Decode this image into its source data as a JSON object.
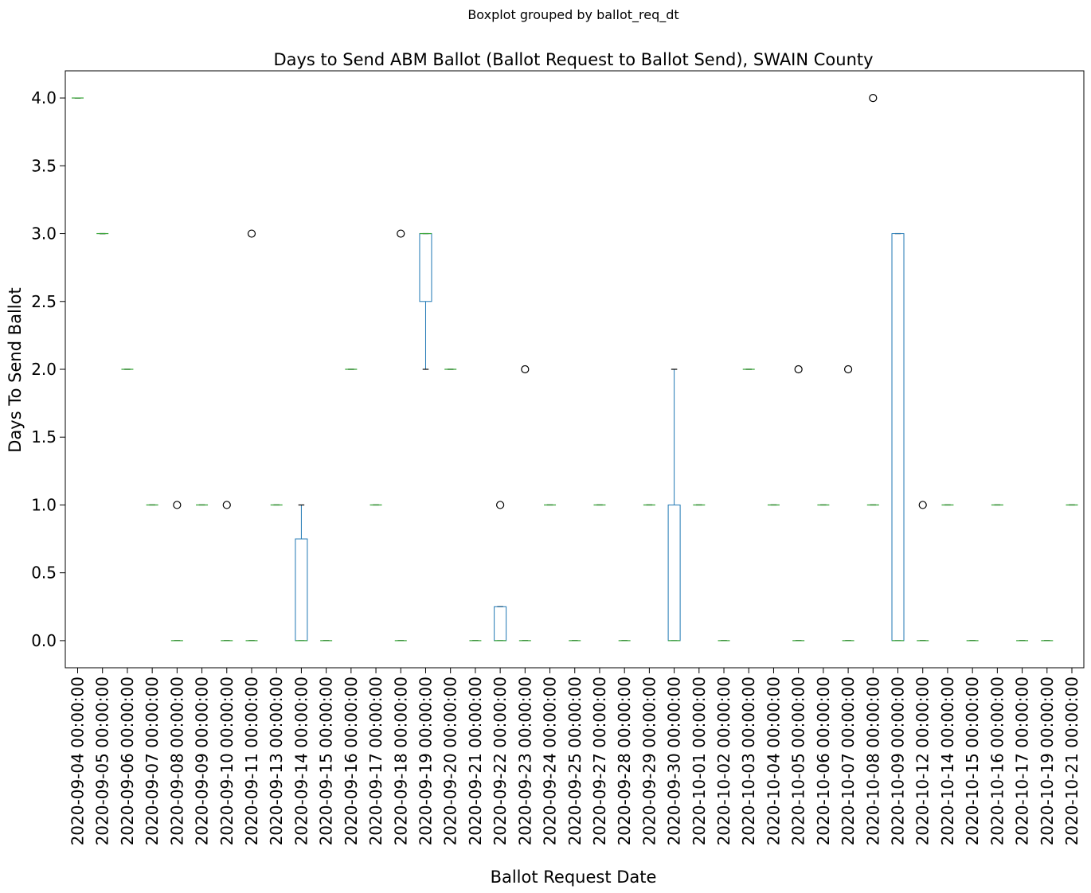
{
  "suptitle": "Boxplot grouped by ballot_req_dt",
  "colors": {
    "box": "#1f77b4",
    "median": "#2ca02c",
    "whisker": "#1f77b4",
    "cap": "#000000",
    "flier": "#000000"
  },
  "chart_data": {
    "type": "boxplot",
    "title": "Days to Send ABM Ballot (Ballot Request to Ballot Send), SWAIN County",
    "xlabel": "Ballot Request Date",
    "ylabel": "Days To Send Ballot",
    "ylim": [
      -0.2,
      4.2
    ],
    "yticks": [
      0.0,
      0.5,
      1.0,
      1.5,
      2.0,
      2.5,
      3.0,
      3.5,
      4.0
    ],
    "ytick_labels": [
      "0.0",
      "0.5",
      "1.0",
      "1.5",
      "2.0",
      "2.5",
      "3.0",
      "3.5",
      "4.0"
    ],
    "grid": false,
    "boxes": [
      {
        "category": "2020-09-04 00:00:00",
        "wlo": 4,
        "q1": 4,
        "med": 4,
        "q3": 4,
        "whi": 4,
        "fliers": []
      },
      {
        "category": "2020-09-05 00:00:00",
        "wlo": 3,
        "q1": 3,
        "med": 3,
        "q3": 3,
        "whi": 3,
        "fliers": []
      },
      {
        "category": "2020-09-06 00:00:00",
        "wlo": 2,
        "q1": 2,
        "med": 2,
        "q3": 2,
        "whi": 2,
        "fliers": []
      },
      {
        "category": "2020-09-07 00:00:00",
        "wlo": 1,
        "q1": 1,
        "med": 1,
        "q3": 1,
        "whi": 1,
        "fliers": []
      },
      {
        "category": "2020-09-08 00:00:00",
        "wlo": 0,
        "q1": 0,
        "med": 0,
        "q3": 0,
        "whi": 0,
        "fliers": [
          1
        ]
      },
      {
        "category": "2020-09-09 00:00:00",
        "wlo": 1,
        "q1": 1,
        "med": 1,
        "q3": 1,
        "whi": 1,
        "fliers": []
      },
      {
        "category": "2020-09-10 00:00:00",
        "wlo": 0,
        "q1": 0,
        "med": 0,
        "q3": 0,
        "whi": 0,
        "fliers": [
          1
        ]
      },
      {
        "category": "2020-09-11 00:00:00",
        "wlo": 0,
        "q1": 0,
        "med": 0,
        "q3": 0,
        "whi": 0,
        "fliers": [
          3
        ]
      },
      {
        "category": "2020-09-13 00:00:00",
        "wlo": 1,
        "q1": 1,
        "med": 1,
        "q3": 1,
        "whi": 1,
        "fliers": []
      },
      {
        "category": "2020-09-14 00:00:00",
        "wlo": 0,
        "q1": 0,
        "med": 0,
        "q3": 0.75,
        "whi": 1,
        "fliers": []
      },
      {
        "category": "2020-09-15 00:00:00",
        "wlo": 0,
        "q1": 0,
        "med": 0,
        "q3": 0,
        "whi": 0,
        "fliers": []
      },
      {
        "category": "2020-09-16 00:00:00",
        "wlo": 2,
        "q1": 2,
        "med": 2,
        "q3": 2,
        "whi": 2,
        "fliers": []
      },
      {
        "category": "2020-09-17 00:00:00",
        "wlo": 1,
        "q1": 1,
        "med": 1,
        "q3": 1,
        "whi": 1,
        "fliers": []
      },
      {
        "category": "2020-09-18 00:00:00",
        "wlo": 0,
        "q1": 0,
        "med": 0,
        "q3": 0,
        "whi": 0,
        "fliers": [
          3
        ]
      },
      {
        "category": "2020-09-19 00:00:00",
        "wlo": 2,
        "q1": 2.5,
        "med": 3,
        "q3": 3,
        "whi": 3,
        "fliers": []
      },
      {
        "category": "2020-09-20 00:00:00",
        "wlo": 2,
        "q1": 2,
        "med": 2,
        "q3": 2,
        "whi": 2,
        "fliers": []
      },
      {
        "category": "2020-09-21 00:00:00",
        "wlo": 0,
        "q1": 0,
        "med": 0,
        "q3": 0,
        "whi": 0,
        "fliers": []
      },
      {
        "category": "2020-09-22 00:00:00",
        "wlo": 0,
        "q1": 0,
        "med": 0,
        "q3": 0.25,
        "whi": 0.25,
        "fliers": [
          1
        ]
      },
      {
        "category": "2020-09-23 00:00:00",
        "wlo": 0,
        "q1": 0,
        "med": 0,
        "q3": 0,
        "whi": 0,
        "fliers": [
          2
        ]
      },
      {
        "category": "2020-09-24 00:00:00",
        "wlo": 1,
        "q1": 1,
        "med": 1,
        "q3": 1,
        "whi": 1,
        "fliers": []
      },
      {
        "category": "2020-09-25 00:00:00",
        "wlo": 0,
        "q1": 0,
        "med": 0,
        "q3": 0,
        "whi": 0,
        "fliers": []
      },
      {
        "category": "2020-09-27 00:00:00",
        "wlo": 1,
        "q1": 1,
        "med": 1,
        "q3": 1,
        "whi": 1,
        "fliers": []
      },
      {
        "category": "2020-09-28 00:00:00",
        "wlo": 0,
        "q1": 0,
        "med": 0,
        "q3": 0,
        "whi": 0,
        "fliers": []
      },
      {
        "category": "2020-09-29 00:00:00",
        "wlo": 1,
        "q1": 1,
        "med": 1,
        "q3": 1,
        "whi": 1,
        "fliers": []
      },
      {
        "category": "2020-09-30 00:00:00",
        "wlo": 0,
        "q1": 0,
        "med": 0,
        "q3": 1,
        "whi": 2,
        "fliers": []
      },
      {
        "category": "2020-10-01 00:00:00",
        "wlo": 1,
        "q1": 1,
        "med": 1,
        "q3": 1,
        "whi": 1,
        "fliers": []
      },
      {
        "category": "2020-10-02 00:00:00",
        "wlo": 0,
        "q1": 0,
        "med": 0,
        "q3": 0,
        "whi": 0,
        "fliers": []
      },
      {
        "category": "2020-10-03 00:00:00",
        "wlo": 2,
        "q1": 2,
        "med": 2,
        "q3": 2,
        "whi": 2,
        "fliers": []
      },
      {
        "category": "2020-10-04 00:00:00",
        "wlo": 1,
        "q1": 1,
        "med": 1,
        "q3": 1,
        "whi": 1,
        "fliers": []
      },
      {
        "category": "2020-10-05 00:00:00",
        "wlo": 0,
        "q1": 0,
        "med": 0,
        "q3": 0,
        "whi": 0,
        "fliers": [
          2
        ]
      },
      {
        "category": "2020-10-06 00:00:00",
        "wlo": 1,
        "q1": 1,
        "med": 1,
        "q3": 1,
        "whi": 1,
        "fliers": []
      },
      {
        "category": "2020-10-07 00:00:00",
        "wlo": 0,
        "q1": 0,
        "med": 0,
        "q3": 0,
        "whi": 0,
        "fliers": [
          2
        ]
      },
      {
        "category": "2020-10-08 00:00:00",
        "wlo": 1,
        "q1": 1,
        "med": 1,
        "q3": 1,
        "whi": 1,
        "fliers": [
          4
        ]
      },
      {
        "category": "2020-10-09 00:00:00",
        "wlo": 0,
        "q1": 0,
        "med": 0,
        "q3": 3,
        "whi": 3,
        "fliers": []
      },
      {
        "category": "2020-10-12 00:00:00",
        "wlo": 0,
        "q1": 0,
        "med": 0,
        "q3": 0,
        "whi": 0,
        "fliers": [
          1
        ]
      },
      {
        "category": "2020-10-14 00:00:00",
        "wlo": 1,
        "q1": 1,
        "med": 1,
        "q3": 1,
        "whi": 1,
        "fliers": []
      },
      {
        "category": "2020-10-15 00:00:00",
        "wlo": 0,
        "q1": 0,
        "med": 0,
        "q3": 0,
        "whi": 0,
        "fliers": []
      },
      {
        "category": "2020-10-16 00:00:00",
        "wlo": 1,
        "q1": 1,
        "med": 1,
        "q3": 1,
        "whi": 1,
        "fliers": []
      },
      {
        "category": "2020-10-17 00:00:00",
        "wlo": 0,
        "q1": 0,
        "med": 0,
        "q3": 0,
        "whi": 0,
        "fliers": []
      },
      {
        "category": "2020-10-19 00:00:00",
        "wlo": 0,
        "q1": 0,
        "med": 0,
        "q3": 0,
        "whi": 0,
        "fliers": []
      },
      {
        "category": "2020-10-21 00:00:00",
        "wlo": 1,
        "q1": 1,
        "med": 1,
        "q3": 1,
        "whi": 1,
        "fliers": []
      }
    ]
  }
}
